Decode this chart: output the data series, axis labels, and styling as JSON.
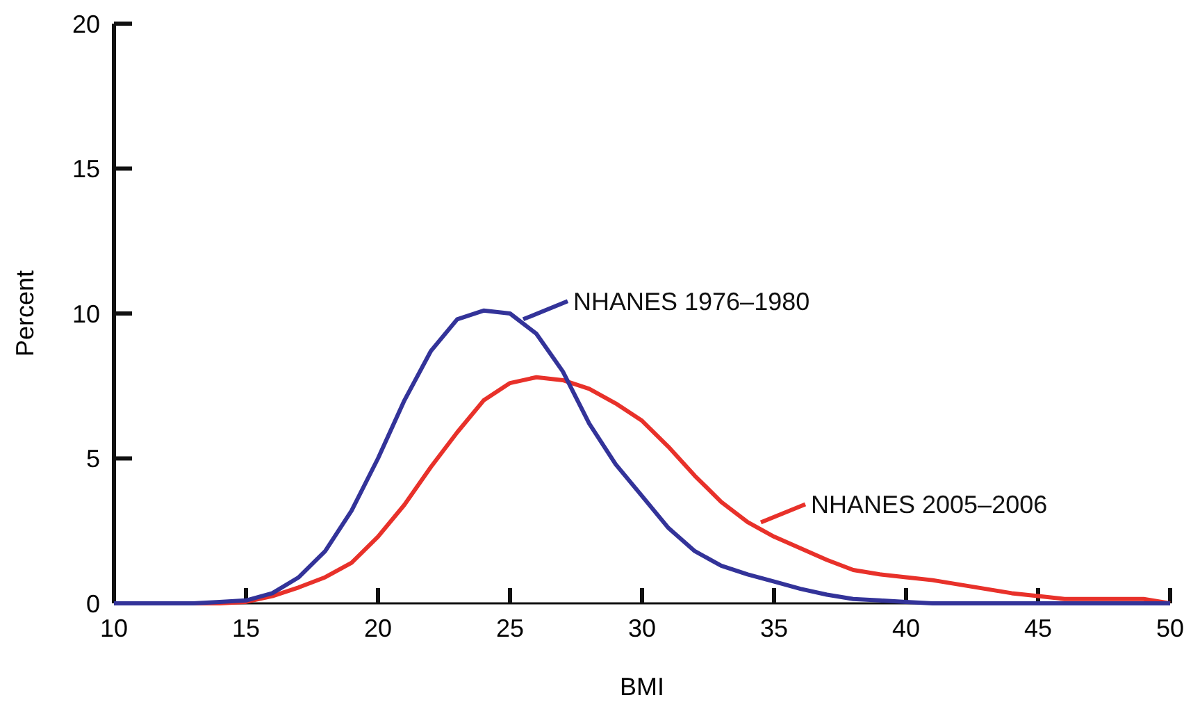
{
  "chart_data": {
    "type": "line",
    "xlabel": "BMI",
    "ylabel": "Percent",
    "x": [
      10,
      11,
      12,
      13,
      14,
      15,
      16,
      17,
      18,
      19,
      20,
      21,
      22,
      23,
      24,
      25,
      26,
      27,
      28,
      29,
      30,
      31,
      32,
      33,
      34,
      35,
      36,
      37,
      38,
      39,
      40,
      41,
      42,
      43,
      44,
      45,
      46,
      47,
      48,
      49,
      50
    ],
    "series": [
      {
        "name": "NHANES 1976–1980",
        "color": "#333399",
        "values": [
          0,
          0,
          0,
          0,
          0.05,
          0.1,
          0.35,
          0.9,
          1.8,
          3.2,
          5.0,
          7.0,
          8.7,
          9.8,
          10.1,
          10.0,
          9.3,
          8.0,
          6.2,
          4.8,
          3.7,
          2.6,
          1.8,
          1.3,
          1.0,
          0.75,
          0.5,
          0.3,
          0.15,
          0.1,
          0.05,
          0,
          0,
          0,
          0,
          0,
          0,
          0,
          0,
          0,
          0
        ]
      },
      {
        "name": "NHANES 2005–2006",
        "color": "#e8312a",
        "values": [
          null,
          null,
          0,
          0,
          0,
          0.05,
          0.25,
          0.55,
          0.9,
          1.4,
          2.3,
          3.4,
          4.7,
          5.9,
          7.0,
          7.6,
          7.8,
          7.7,
          7.4,
          6.9,
          6.3,
          5.4,
          4.4,
          3.5,
          2.8,
          2.3,
          1.9,
          1.5,
          1.15,
          1.0,
          0.9,
          0.8,
          0.65,
          0.5,
          0.35,
          0.25,
          0.15,
          0.15,
          0.15,
          0.15,
          0
        ]
      }
    ],
    "xlim": [
      10,
      50
    ],
    "xticks": [
      10,
      15,
      20,
      25,
      30,
      35,
      40,
      45,
      50
    ],
    "ylim": [
      0,
      20
    ],
    "yticks": [
      0,
      5,
      10,
      15,
      20
    ],
    "grid": false,
    "legend": "right",
    "marker": "none",
    "line_style": "solid"
  }
}
